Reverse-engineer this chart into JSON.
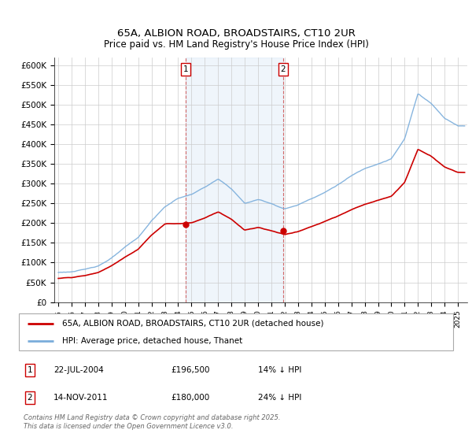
{
  "title": "65A, ALBION ROAD, BROADSTAIRS, CT10 2UR",
  "subtitle": "Price paid vs. HM Land Registry's House Price Index (HPI)",
  "ylim": [
    0,
    620000
  ],
  "yticks": [
    0,
    50000,
    100000,
    150000,
    200000,
    250000,
    300000,
    350000,
    400000,
    450000,
    500000,
    550000,
    600000
  ],
  "ytick_labels": [
    "£0",
    "£50K",
    "£100K",
    "£150K",
    "£200K",
    "£250K",
    "£300K",
    "£350K",
    "£400K",
    "£450K",
    "£500K",
    "£550K",
    "£600K"
  ],
  "xlim_start": 1994.7,
  "xlim_end": 2025.7,
  "sale1_x": 2004.55,
  "sale1_y": 196500,
  "sale2_x": 2011.88,
  "sale2_y": 180000,
  "line_property_color": "#cc0000",
  "line_hpi_color": "#7aaddb",
  "legend_line1": "65A, ALBION ROAD, BROADSTAIRS, CT10 2UR (detached house)",
  "legend_line2": "HPI: Average price, detached house, Thanet",
  "table_row1": [
    "1",
    "22-JUL-2004",
    "£196,500",
    "14% ↓ HPI"
  ],
  "table_row2": [
    "2",
    "14-NOV-2011",
    "£180,000",
    "24% ↓ HPI"
  ],
  "footnote": "Contains HM Land Registry data © Crown copyright and database right 2025.\nThis data is licensed under the Open Government Licence v3.0.",
  "bg_color": "#ffffff",
  "plot_bg": "#ffffff",
  "shade_color": "#ddeeff",
  "grid_color": "#cccccc"
}
